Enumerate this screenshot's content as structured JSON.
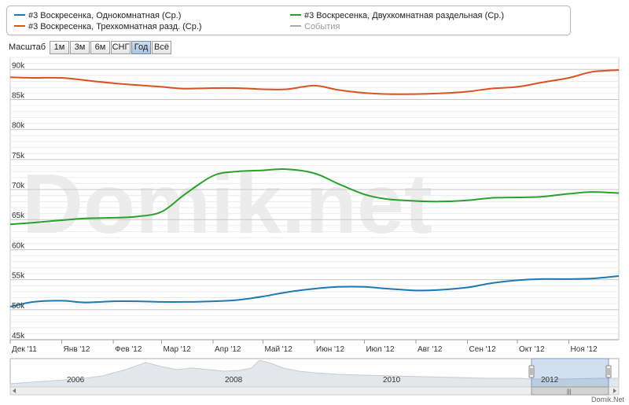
{
  "legend": {
    "items": [
      {
        "label": "#3 Воскресенка, Однокомнатная (Ср.)",
        "color": "#1f77b4",
        "muted": false
      },
      {
        "label": "#3 Воскресенка, Двухкомнатная раздельная (Ср.)",
        "color": "#2ca02c",
        "muted": false
      },
      {
        "label": "#3 Воскресенка, Трехкомнатная разд. (Ср.)",
        "color": "#d8531f",
        "muted": false
      },
      {
        "label": "События",
        "color": "#aaaaaa",
        "muted": true
      }
    ]
  },
  "zoom": {
    "label": "Масштаб",
    "buttons": [
      "1м",
      "3м",
      "6м",
      "СНГ",
      "Год",
      "Всё"
    ],
    "active": "Год"
  },
  "watermark": "Domik.net",
  "credit": "Domik.Net",
  "navigator": {
    "years": [
      "2006",
      "2008",
      "2010",
      "2012"
    ],
    "scroll_glyph": "|||"
  },
  "chart_data": {
    "type": "line",
    "x_tick_labels": [
      "Дек '11",
      "Янв '12",
      "Фев '12",
      "Мар '12",
      "Апр '12",
      "Май '12",
      "Июн '12",
      "Июл '12",
      "Авг '12",
      "Сен '12",
      "Окт '12",
      "Ноя '12"
    ],
    "y_tick_labels": [
      "45k",
      "50k",
      "55k",
      "60k",
      "65k",
      "70k",
      "75k",
      "80k",
      "85k",
      "90k"
    ],
    "ylim": [
      45000,
      92000
    ],
    "grid": true,
    "series": [
      {
        "name": "#3 Воскресенка, Трехкомнатная разд. (Ср.)",
        "color": "#d8531f",
        "x": [
          "2011-12-01",
          "2011-12-15",
          "2012-01-01",
          "2012-01-15",
          "2012-02-01",
          "2012-02-15",
          "2012-03-01",
          "2012-03-15",
          "2012-04-01",
          "2012-04-15",
          "2012-05-01",
          "2012-05-15",
          "2012-06-01",
          "2012-06-15",
          "2012-07-01",
          "2012-07-15",
          "2012-08-01",
          "2012-08-15",
          "2012-09-01",
          "2012-09-15",
          "2012-10-01",
          "2012-10-15",
          "2012-11-01",
          "2012-11-15",
          "2012-12-01"
        ],
        "values": [
          88700,
          88600,
          88600,
          88200,
          87700,
          87400,
          87100,
          86800,
          86900,
          86900,
          86700,
          86700,
          87300,
          86600,
          86100,
          85900,
          85900,
          86000,
          86300,
          86800,
          87100,
          87800,
          88600,
          89600,
          89900
        ]
      },
      {
        "name": "#3 Воскресенка, Двухкомнатная раздельная (Ср.)",
        "color": "#2ca02c",
        "x": [
          "2011-12-01",
          "2011-12-15",
          "2012-01-01",
          "2012-01-15",
          "2012-02-01",
          "2012-02-15",
          "2012-03-01",
          "2012-03-15",
          "2012-04-01",
          "2012-04-15",
          "2012-05-01",
          "2012-05-15",
          "2012-06-01",
          "2012-06-15",
          "2012-07-01",
          "2012-07-15",
          "2012-08-01",
          "2012-08-15",
          "2012-09-01",
          "2012-09-15",
          "2012-10-01",
          "2012-10-15",
          "2012-11-01",
          "2012-11-15",
          "2012-12-01"
        ],
        "values": [
          64200,
          64500,
          64900,
          65200,
          65300,
          65500,
          66300,
          69200,
          72300,
          73000,
          73200,
          73400,
          72700,
          71000,
          69200,
          68400,
          68100,
          68000,
          68200,
          68600,
          68700,
          68800,
          69300,
          69600,
          69400
        ]
      },
      {
        "name": "#3 Воскресенка, Однокомнатная (Ср.)",
        "color": "#1f77b4",
        "x": [
          "2011-12-01",
          "2011-12-15",
          "2012-01-01",
          "2012-01-15",
          "2012-02-01",
          "2012-02-15",
          "2012-03-01",
          "2012-03-15",
          "2012-04-01",
          "2012-04-15",
          "2012-05-01",
          "2012-05-15",
          "2012-06-01",
          "2012-06-15",
          "2012-07-01",
          "2012-07-15",
          "2012-08-01",
          "2012-08-15",
          "2012-09-01",
          "2012-09-15",
          "2012-10-01",
          "2012-10-15",
          "2012-11-01",
          "2012-11-15",
          "2012-12-01"
        ],
        "values": [
          50500,
          51300,
          51500,
          51200,
          51400,
          51400,
          51300,
          51300,
          51400,
          51600,
          52200,
          52900,
          53500,
          53800,
          53800,
          53500,
          53200,
          53300,
          53700,
          54400,
          54900,
          55100,
          55100,
          55200,
          55600
        ]
      }
    ]
  }
}
